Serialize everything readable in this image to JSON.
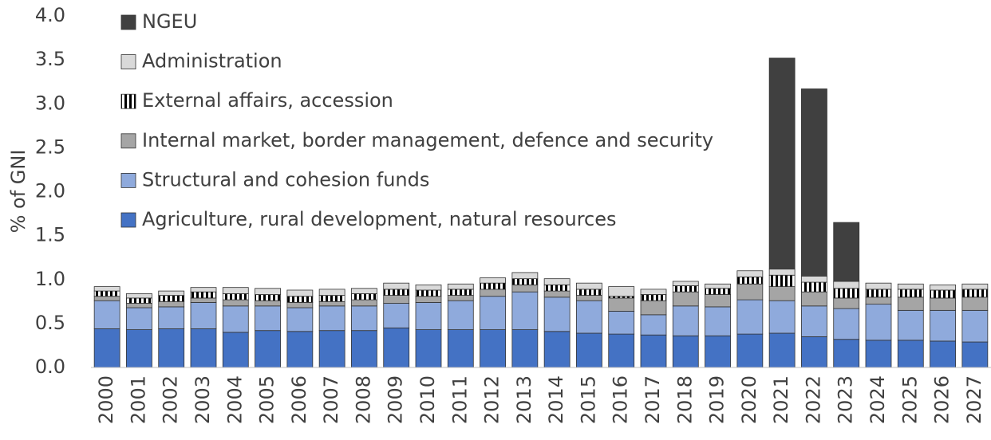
{
  "chart_data": {
    "type": "stacked_bar",
    "y_label": "% of GNI",
    "categories": [
      "2000",
      "2001",
      "2002",
      "2003",
      "2004",
      "2005",
      "2006",
      "2007",
      "2008",
      "2009",
      "2010",
      "2011",
      "2012",
      "2013",
      "2014",
      "2015",
      "2016",
      "2017",
      "2018",
      "2019",
      "2020",
      "2021",
      "2022",
      "2023",
      "2024",
      "2025",
      "2026",
      "2027"
    ],
    "series": [
      {
        "name": "Agriculture, rural development, natural resources",
        "color": "#4472c4",
        "hatch": false,
        "values": [
          0.44,
          0.43,
          0.44,
          0.44,
          0.4,
          0.42,
          0.41,
          0.42,
          0.42,
          0.45,
          0.43,
          0.43,
          0.43,
          0.43,
          0.41,
          0.39,
          0.38,
          0.37,
          0.36,
          0.36,
          0.38,
          0.39,
          0.35,
          0.32,
          0.31,
          0.31,
          0.3,
          0.29
        ]
      },
      {
        "name": "Structural and cohesion funds",
        "color": "#8faadc",
        "hatch": false,
        "values": [
          0.32,
          0.25,
          0.25,
          0.3,
          0.3,
          0.28,
          0.27,
          0.28,
          0.28,
          0.28,
          0.31,
          0.33,
          0.38,
          0.43,
          0.39,
          0.37,
          0.26,
          0.23,
          0.34,
          0.33,
          0.39,
          0.37,
          0.35,
          0.35,
          0.41,
          0.34,
          0.35,
          0.36
        ]
      },
      {
        "name": "Internal market, border management, defence and security",
        "color": "#a5a5a5",
        "hatch": false,
        "values": [
          0.05,
          0.05,
          0.06,
          0.05,
          0.07,
          0.06,
          0.06,
          0.05,
          0.07,
          0.09,
          0.07,
          0.06,
          0.08,
          0.08,
          0.07,
          0.06,
          0.15,
          0.16,
          0.16,
          0.14,
          0.18,
          0.16,
          0.16,
          0.12,
          0.08,
          0.15,
          0.14,
          0.15
        ]
      },
      {
        "name": "External affairs, accession",
        "color": "#000000",
        "hatch": true,
        "values": [
          0.06,
          0.06,
          0.07,
          0.07,
          0.07,
          0.07,
          0.07,
          0.07,
          0.07,
          0.07,
          0.07,
          0.07,
          0.07,
          0.07,
          0.07,
          0.07,
          0.02,
          0.07,
          0.07,
          0.07,
          0.08,
          0.13,
          0.11,
          0.11,
          0.09,
          0.09,
          0.09,
          0.09
        ]
      },
      {
        "name": "Administration",
        "color": "#d9d9d9",
        "hatch": false,
        "values": [
          0.05,
          0.05,
          0.05,
          0.05,
          0.07,
          0.07,
          0.07,
          0.07,
          0.06,
          0.07,
          0.06,
          0.06,
          0.06,
          0.07,
          0.07,
          0.07,
          0.11,
          0.06,
          0.05,
          0.05,
          0.07,
          0.07,
          0.07,
          0.08,
          0.07,
          0.06,
          0.06,
          0.06
        ]
      },
      {
        "name": "NGEU",
        "color": "#404040",
        "hatch": false,
        "values": [
          0,
          0,
          0,
          0,
          0,
          0,
          0,
          0,
          0,
          0,
          0,
          0,
          0,
          0,
          0,
          0,
          0,
          0,
          0,
          0,
          0,
          2.4,
          2.13,
          0.67,
          0,
          0,
          0,
          0
        ]
      }
    ],
    "ylim": [
      0,
      4
    ],
    "yticks": [
      {
        "value": 0,
        "label": "0.0"
      },
      0.5,
      {
        "value": 1,
        "label": "1.0"
      },
      1.5,
      {
        "value": 2,
        "label": "2.0"
      },
      2.5,
      {
        "value": 3,
        "label": "3.0"
      },
      3.5,
      {
        "value": 4,
        "label": "4.0"
      }
    ],
    "legend": "upper-left"
  }
}
